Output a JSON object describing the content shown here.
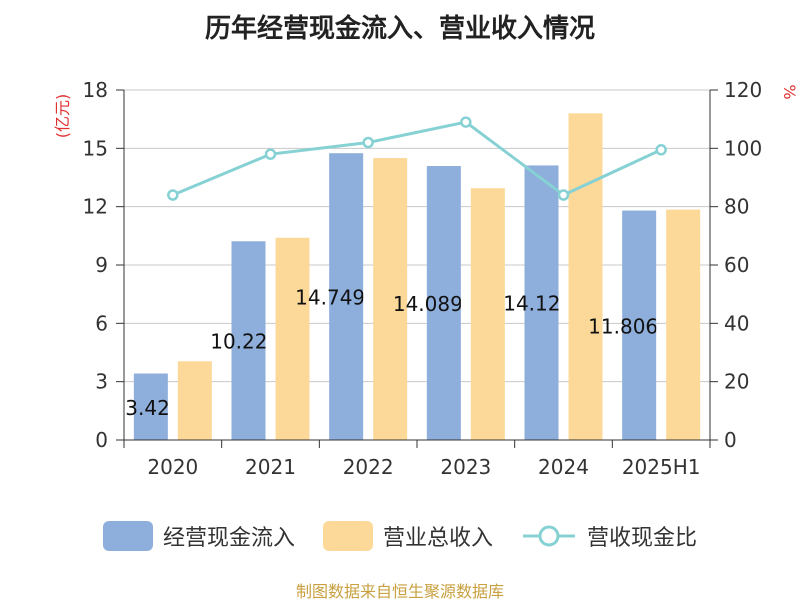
{
  "chart_data": {
    "type": "bar",
    "title": "历年经营现金流入、营业收入情况",
    "categories": [
      "2020",
      "2021",
      "2022",
      "2023",
      "2024",
      "2025H1"
    ],
    "y_left_label": "(亿元)",
    "y_right_label": "%",
    "y_left_range": [
      0,
      18
    ],
    "y_left_ticks": [
      0,
      3,
      6,
      9,
      12,
      15,
      18
    ],
    "y_right_range": [
      0,
      120
    ],
    "y_right_ticks": [
      0,
      20,
      40,
      60,
      80,
      100,
      120
    ],
    "grid": true,
    "legend_position": "bottom",
    "series": [
      {
        "name": "经营现金流入",
        "type": "bar",
        "axis": "left",
        "color": "#8eaedb",
        "values": [
          3.42,
          10.22,
          14.75,
          14.09,
          14.12,
          11.8
        ],
        "labels": [
          "3.42",
          "10.22",
          "14.749",
          "14.089",
          "14.12",
          "11.806"
        ]
      },
      {
        "name": "营业总收入",
        "type": "bar",
        "axis": "left",
        "color": "#fdd999",
        "values": [
          4.05,
          10.4,
          14.5,
          12.95,
          16.8,
          11.85
        ]
      },
      {
        "name": "营收现金比",
        "type": "line",
        "axis": "right",
        "color": "#86d1d4",
        "values": [
          84,
          98,
          102,
          109,
          84,
          99.5
        ]
      }
    ]
  },
  "source": "制图数据来自恒生聚源数据库"
}
